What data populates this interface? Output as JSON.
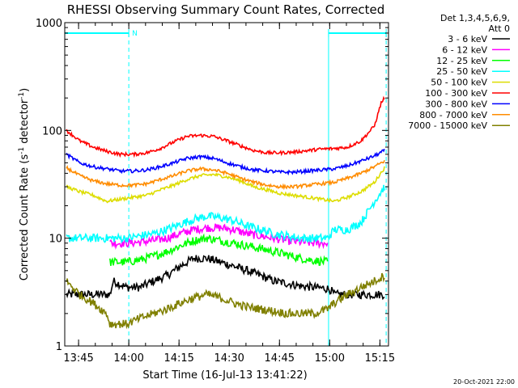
{
  "chart_data": {
    "type": "line",
    "title": "RHESSI Observing Summary Count Rates, Corrected",
    "xlabel": "Start Time (16-Jul-13 13:41:22)",
    "ylabel_parts": {
      "main": "Corrected Count Rate (s",
      "sup1": "-1",
      "mid": " detector",
      "sup2": "-1",
      "end": ")"
    },
    "ylim": [
      1,
      1000
    ],
    "yscale": "log",
    "y_ticks": [
      "1",
      "10",
      "100",
      "1000"
    ],
    "x_range_minutes": [
      -0.5,
      96.2
    ],
    "x_ticks": [
      {
        "label": "13:45",
        "t": 3.63
      },
      {
        "label": "14:00",
        "t": 18.63
      },
      {
        "label": "14:15",
        "t": 33.63
      },
      {
        "label": "14:30",
        "t": 48.63
      },
      {
        "label": "14:45",
        "t": 63.63
      },
      {
        "label": "15:00",
        "t": 78.63
      },
      {
        "label": "15:15",
        "t": 93.63
      }
    ],
    "legend_header": [
      "Det 1,3,4,5,6,9,",
      "Att 0"
    ],
    "series": [
      {
        "name": "3 - 6 keV",
        "color": "#000000",
        "x": [
          0,
          13,
          14,
          18,
          22,
          26,
          30,
          34,
          38,
          42,
          46,
          50,
          54,
          58,
          62,
          66,
          70,
          74,
          78,
          79,
          80,
          84,
          88,
          92,
          95
        ],
        "values": [
          3,
          3,
          4,
          3.5,
          3.5,
          4,
          4.5,
          5.5,
          6.5,
          6.5,
          6,
          5.5,
          5,
          4.5,
          4,
          3.8,
          3.6,
          3.5,
          3.4,
          3.3,
          3,
          3,
          3,
          3,
          3
        ]
      },
      {
        "name": "6 - 12 keV",
        "color": "#ff00ff",
        "x": [
          13,
          18,
          22,
          26,
          30,
          34,
          38,
          42,
          46,
          50,
          54,
          58,
          62,
          66,
          70,
          74,
          78
        ],
        "values": [
          9,
          9,
          9.2,
          9.5,
          10,
          11,
          12,
          12.5,
          12.5,
          12,
          11,
          10.5,
          10,
          9.5,
          9.2,
          9,
          9
        ]
      },
      {
        "name": "12 - 25 keV",
        "color": "#00ff00",
        "x": [
          13,
          18,
          22,
          26,
          30,
          34,
          38,
          42,
          46,
          50,
          54,
          58,
          62,
          66,
          70,
          74,
          78
        ],
        "values": [
          6,
          6,
          6.3,
          6.8,
          7.5,
          8.5,
          9.5,
          10,
          9.5,
          9,
          8.5,
          8,
          7.5,
          7,
          6.5,
          6.2,
          6
        ]
      },
      {
        "name": "25 - 50 keV",
        "color": "#00ffff",
        "x": [
          0,
          5,
          10,
          12,
          13,
          18,
          22,
          26,
          30,
          34,
          38,
          42,
          46,
          50,
          54,
          58,
          62,
          66,
          70,
          74,
          78,
          80,
          84,
          88,
          92,
          95
        ],
        "values": [
          10,
          10,
          10,
          10,
          10,
          10,
          10.5,
          11,
          12,
          13.5,
          15,
          16,
          15.5,
          14.5,
          13,
          12,
          11,
          10.5,
          10,
          10,
          10,
          12,
          12,
          14,
          22,
          30
        ]
      },
      {
        "name": "50 - 100 keV",
        "color": "#dddd00",
        "x": [
          0,
          4,
          8,
          12,
          16,
          20,
          24,
          28,
          32,
          36,
          40,
          44,
          48,
          52,
          56,
          60,
          64,
          68,
          72,
          76,
          80,
          84,
          88,
          92,
          95
        ],
        "values": [
          30,
          27,
          25,
          22,
          23,
          24,
          25,
          28,
          31,
          35,
          38,
          39,
          37,
          34,
          30,
          28,
          26,
          25,
          24,
          23,
          22,
          24,
          27,
          33,
          45
        ]
      },
      {
        "name": "100 - 300 keV",
        "color": "#ff0000",
        "x": [
          0,
          4,
          8,
          12,
          16,
          20,
          24,
          28,
          32,
          36,
          40,
          44,
          48,
          52,
          56,
          60,
          64,
          68,
          72,
          76,
          80,
          84,
          88,
          92,
          94,
          95
        ],
        "values": [
          100,
          80,
          70,
          64,
          60,
          60,
          62,
          68,
          78,
          88,
          90,
          88,
          80,
          72,
          65,
          62,
          62,
          63,
          65,
          67,
          68,
          70,
          80,
          110,
          180,
          200
        ]
      },
      {
        "name": "300 - 800 keV",
        "color": "#0000ff",
        "x": [
          0,
          4,
          8,
          12,
          16,
          20,
          24,
          28,
          32,
          36,
          40,
          44,
          48,
          52,
          56,
          60,
          64,
          68,
          72,
          76,
          80,
          84,
          88,
          92,
          95
        ],
        "values": [
          60,
          50,
          46,
          44,
          42,
          42,
          43,
          46,
          50,
          55,
          57,
          55,
          50,
          46,
          43,
          42,
          41,
          41,
          42,
          43,
          44,
          47,
          52,
          58,
          65
        ]
      },
      {
        "name": "800 - 7000 keV",
        "color": "#ff8c00",
        "x": [
          0,
          4,
          8,
          12,
          16,
          20,
          24,
          28,
          32,
          36,
          40,
          44,
          48,
          52,
          56,
          60,
          64,
          68,
          72,
          76,
          80,
          84,
          88,
          92,
          95
        ],
        "values": [
          45,
          38,
          34,
          32,
          31,
          31,
          32,
          35,
          38,
          42,
          44,
          43,
          40,
          36,
          33,
          31,
          30,
          30,
          31,
          32,
          33,
          36,
          40,
          46,
          52
        ]
      },
      {
        "name": "7000 - 15000 keV",
        "color": "#808000",
        "x": [
          0,
          4,
          8,
          12,
          13,
          18,
          22,
          26,
          30,
          34,
          38,
          42,
          46,
          50,
          54,
          58,
          62,
          66,
          70,
          74,
          78,
          80,
          84,
          88,
          92,
          95
        ],
        "values": [
          4,
          3,
          2.5,
          2,
          1.6,
          1.6,
          1.8,
          2,
          2.2,
          2.5,
          2.8,
          3,
          2.8,
          2.5,
          2.3,
          2.2,
          2.1,
          2,
          2,
          2,
          2.2,
          2.5,
          3,
          3.5,
          4,
          4.5
        ]
      }
    ],
    "attenuator_bars": [
      {
        "label": "N",
        "from": -0.5,
        "to": 18.63
      },
      {
        "label": "",
        "from": 78.3,
        "to": 95.5
      }
    ],
    "footer_date": "20-Oct-2021 22:00"
  }
}
